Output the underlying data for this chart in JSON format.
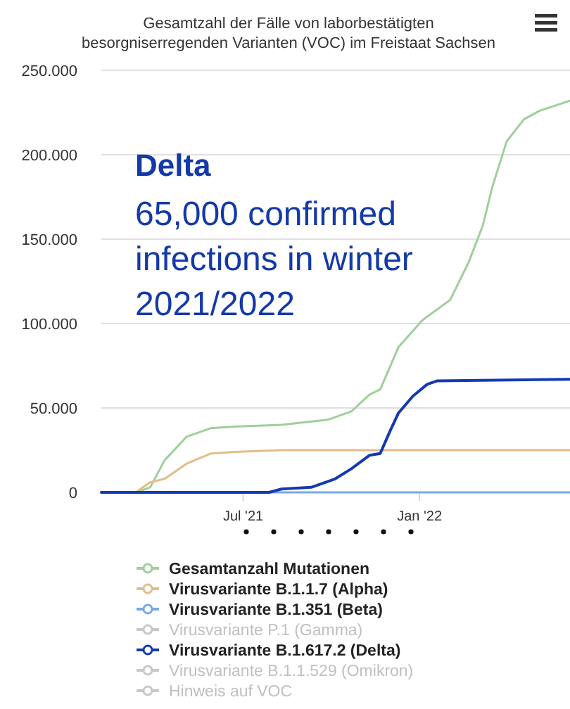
{
  "chart_data": {
    "type": "line",
    "title": "Gesamtzahl der Fälle von laborbestätigten besorgniserregenden Varianten (VOC) im Freistaat Sachsen",
    "xlim": [
      "2021-02-03",
      "2022-06-07"
    ],
    "xticks": [
      {
        "value": "2021-07-01",
        "label": "Jul '21"
      },
      {
        "value": "2022-01-01",
        "label": "Jan '22"
      }
    ],
    "ylim": [
      0,
      250000
    ],
    "yticks": [
      {
        "value": 0,
        "label": "0"
      },
      {
        "value": 50000,
        "label": "50.000"
      },
      {
        "value": 100000,
        "label": "100.000"
      },
      {
        "value": 150000,
        "label": "150.000"
      },
      {
        "value": 200000,
        "label": "200.000"
      },
      {
        "value": 250000,
        "label": "250.000"
      }
    ],
    "grid": "y",
    "legend": "bottom",
    "annotations": [
      "Delta",
      "65,000 confirmed infections in winter 2021/2022"
    ],
    "series": [
      {
        "name": "Gesamtanzahl Mutationen",
        "color": "#9fcf9a",
        "x": [
          "2021-02-03",
          "2021-03-11",
          "2021-03-26",
          "2021-04-10",
          "2021-05-03",
          "2021-05-28",
          "2021-06-22",
          "2021-08-10",
          "2021-09-27",
          "2021-10-22",
          "2021-11-10",
          "2021-11-21",
          "2021-12-10",
          "2022-01-04",
          "2022-02-02",
          "2022-02-21",
          "2022-03-08",
          "2022-03-18",
          "2022-04-02",
          "2022-04-20",
          "2022-05-06",
          "2022-06-07"
        ],
        "values": [
          0,
          0,
          3000,
          19000,
          33000,
          38000,
          39000,
          40000,
          43000,
          48000,
          58000,
          61000,
          86000,
          102000,
          114000,
          136000,
          158000,
          181000,
          208000,
          221000,
          226000,
          232000
        ]
      },
      {
        "name": "Virusvariante B.1.1.7 (Alpha)",
        "color": "#e2bd8a",
        "x": [
          "2021-02-03",
          "2021-03-11",
          "2021-03-26",
          "2021-04-10",
          "2021-05-03",
          "2021-05-28",
          "2021-06-22",
          "2021-08-10",
          "2022-06-07"
        ],
        "values": [
          0,
          0,
          6000,
          8000,
          17000,
          23000,
          24000,
          25000,
          25000
        ]
      },
      {
        "name": "Virusvariante B.1.351 (Beta)",
        "color": "#7aa7e6",
        "x": [
          "2021-02-03",
          "2022-06-07"
        ],
        "values": [
          0,
          0
        ]
      },
      {
        "name": "Virusvariante P.1 (Gamma)",
        "color": "#c8c8c8"
      },
      {
        "name": "Virusvariante B.1.617.2 (Delta)",
        "color": "#1439b0",
        "x": [
          "2021-02-03",
          "2021-07-28",
          "2021-08-10",
          "2021-09-10",
          "2021-10-05",
          "2021-10-22",
          "2021-11-10",
          "2021-11-21",
          "2021-12-01",
          "2021-12-10",
          "2021-12-25",
          "2022-01-09",
          "2022-01-19",
          "2022-06-07"
        ],
        "values": [
          0,
          0,
          2000,
          3000,
          8000,
          14000,
          22000,
          23000,
          36000,
          47000,
          57000,
          64000,
          66000,
          67000
        ]
      },
      {
        "name": "Virusvariante B.1.1.529 (Omikron)",
        "color": "#c8c8c8"
      },
      {
        "name": "Hinweis auf VOC",
        "color": "#c8c8c8"
      }
    ]
  }
}
